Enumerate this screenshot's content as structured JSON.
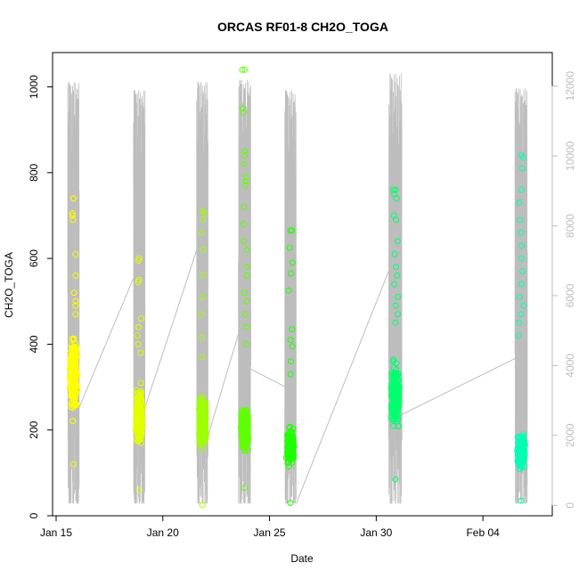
{
  "chart_data": {
    "type": "scatter",
    "title": "ORCAS RF01-8 CH2O_TOGA",
    "xlabel": "Date",
    "ylabel": "CH2O_TOGA",
    "xlim": [
      "2016-01-14T20:00",
      "2016-02-07T06:00"
    ],
    "ylim": [
      0,
      1080
    ],
    "yticks": [
      0,
      200,
      400,
      600,
      800,
      1000
    ],
    "xticks": [
      {
        "date": "2016-01-15",
        "label": "Jan 15"
      },
      {
        "date": "2016-01-20",
        "label": "Jan 20"
      },
      {
        "date": "2016-01-25",
        "label": "Jan 25"
      },
      {
        "date": "2016-01-30",
        "label": "Jan 30"
      },
      {
        "date": "2016-02-04",
        "label": "Feb 04"
      }
    ],
    "y2lim": [
      -300,
      12960
    ],
    "y2ticks": [
      0,
      2000,
      4000,
      6000,
      8000,
      10000,
      12000
    ],
    "y2_color": "#bdbdbd",
    "grid": false,
    "legend": "none",
    "series": [
      {
        "color": "#ffff00",
        "x_range": [
          "2016-01-15T13:00",
          "2016-01-16T02:00"
        ],
        "y_range": [
          120,
          740
        ],
        "n": 260,
        "center": 330,
        "highs": [
          700,
          705,
          740,
          690,
          610,
          560,
          520,
          500,
          490,
          470
        ]
      },
      {
        "color": "#e2ff00",
        "x_range": [
          "2016-01-18T15:00",
          "2016-01-19T04:00"
        ],
        "y_range": [
          60,
          600
        ],
        "n": 240,
        "center": 230,
        "highs": [
          595,
          550,
          545,
          460,
          440,
          420,
          400,
          380
        ]
      },
      {
        "color": "#9fff00",
        "x_range": [
          "2016-01-21T14:00",
          "2016-01-22T03:00"
        ],
        "y_range": [
          25,
          710
        ],
        "n": 240,
        "center": 220,
        "highs": [
          705,
          690,
          660,
          620,
          560,
          510,
          470,
          415,
          370
        ]
      },
      {
        "color": "#5fff00",
        "x_range": [
          "2016-01-23T13:00",
          "2016-01-24T03:00"
        ],
        "y_range": [
          65,
          1040
        ],
        "n": 260,
        "center": 200,
        "highs": [
          1040,
          950,
          940,
          850,
          840,
          820,
          790,
          780,
          770,
          720,
          680,
          640,
          620,
          580,
          560,
          520,
          500,
          470,
          440,
          400
        ]
      },
      {
        "color": "#1fff00",
        "x_range": [
          "2016-01-25T17:00",
          "2016-01-26T06:00"
        ],
        "y_range": [
          30,
          665
        ],
        "n": 240,
        "center": 160,
        "highs": [
          665,
          625,
          590,
          565,
          525,
          435,
          410,
          395,
          360,
          330
        ]
      },
      {
        "color": "#00ff6e",
        "x_range": [
          "2016-01-30T14:00",
          "2016-01-31T05:00"
        ],
        "y_range": [
          85,
          760
        ],
        "n": 280,
        "center": 280,
        "highs": [
          760,
          750,
          740,
          700,
          690,
          640,
          610,
          580,
          560,
          540,
          510,
          490,
          470,
          450
        ]
      },
      {
        "color": "#00ffb2",
        "x_range": [
          "2016-02-05T12:00",
          "2016-02-06T02:00"
        ],
        "y_range": [
          35,
          840
        ],
        "n": 260,
        "center": 150,
        "highs": [
          835,
          810,
          760,
          730,
          690,
          660,
          630,
          600,
          570,
          540,
          510,
          490,
          470,
          450,
          420
        ]
      }
    ],
    "secondary_series": {
      "color": "#bdbdbd",
      "type": "line",
      "flights": [
        {
          "x_range": [
            "2016-01-15T13:00",
            "2016-01-16T02:00"
          ],
          "y_min": 50,
          "y_max": 12120
        },
        {
          "x_range": [
            "2016-01-18T15:00",
            "2016-01-19T04:00"
          ],
          "y_min": 50,
          "y_max": 11880
        },
        {
          "x_range": [
            "2016-01-21T14:00",
            "2016-01-22T03:00"
          ],
          "y_min": 50,
          "y_max": 12120
        },
        {
          "x_range": [
            "2016-01-23T13:00",
            "2016-01-24T03:00"
          ],
          "y_min": 50,
          "y_max": 12180
        },
        {
          "x_range": [
            "2016-01-25T17:00",
            "2016-01-26T06:00"
          ],
          "y_min": 50,
          "y_max": 11880
        },
        {
          "x_range": [
            "2016-01-30T14:00",
            "2016-01-31T05:00"
          ],
          "y_min": 50,
          "y_max": 12360
        },
        {
          "x_range": [
            "2016-02-05T12:00",
            "2016-02-06T02:00"
          ],
          "y_min": 50,
          "y_max": 11940
        }
      ],
      "connectors": [
        {
          "from": [
            "2016-01-16T02:00",
            2800
          ],
          "to": [
            "2016-01-18T15:00",
            6500
          ]
        },
        {
          "from": [
            "2016-01-19T04:00",
            2800
          ],
          "to": [
            "2016-01-21T14:00",
            7300
          ]
        },
        {
          "from": [
            "2016-01-22T03:00",
            2000
          ],
          "to": [
            "2016-01-23T13:00",
            4900
          ]
        },
        {
          "from": [
            "2016-01-24T03:00",
            3900
          ],
          "to": [
            "2016-01-25T17:00",
            3400
          ]
        },
        {
          "from": [
            "2016-01-26T06:00",
            50
          ],
          "to": [
            "2016-01-30T14:00",
            6700
          ]
        },
        {
          "from": [
            "2016-01-31T05:00",
            2600
          ],
          "to": [
            "2016-02-05T12:00",
            4200
          ]
        }
      ]
    }
  }
}
